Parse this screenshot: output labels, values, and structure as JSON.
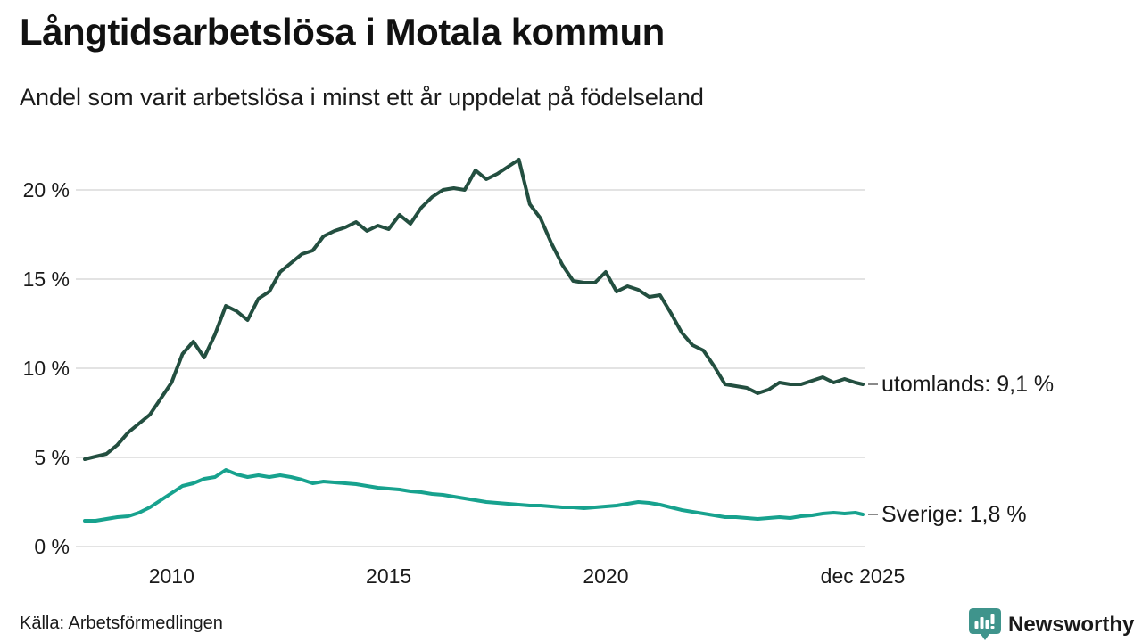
{
  "header": {
    "title": "Långtidsarbetslösa i Motala kommun",
    "subtitle": "Andel som varit arbetslösa i minst ett år uppdelat på födelseland"
  },
  "footer": {
    "source": "Källa: Arbetsförmedlingen",
    "brand": "Newsworthy"
  },
  "colors": {
    "grid": "#e3e3e3",
    "text": "#1a1a1a",
    "brand": "#3f948c",
    "leader_dash": "#8a8a8a"
  },
  "chart_data": {
    "type": "line",
    "title": "Långtidsarbetslösa i Motala kommun",
    "subtitle": "Andel som varit arbetslösa i minst ett år uppdelat på födelseland",
    "xlabel": "",
    "ylabel": "",
    "grid": true,
    "legend_position": "right-end-labels",
    "x_unit": "year (monthly series, jan 2008 – dec 2025)",
    "x_range": [
      2008,
      2025.92
    ],
    "ylim": [
      0,
      22.5
    ],
    "y_ticks": [
      {
        "value": 0,
        "label": "0 %"
      },
      {
        "value": 5,
        "label": "5 %"
      },
      {
        "value": 10,
        "label": "10 %"
      },
      {
        "value": 15,
        "label": "15 %"
      },
      {
        "value": 20,
        "label": "20 %"
      }
    ],
    "x_ticks": [
      {
        "value": 2010,
        "label": "2010"
      },
      {
        "value": 2015,
        "label": "2015"
      },
      {
        "value": 2020,
        "label": "2020"
      },
      {
        "value": 2025.92,
        "label": "dec 2025"
      }
    ],
    "x": [
      2008,
      2008.25,
      2008.5,
      2008.75,
      2009,
      2009.25,
      2009.5,
      2009.75,
      2010,
      2010.25,
      2010.5,
      2010.75,
      2011,
      2011.25,
      2011.5,
      2011.75,
      2012,
      2012.25,
      2012.5,
      2012.75,
      2013,
      2013.25,
      2013.5,
      2013.75,
      2014,
      2014.25,
      2014.5,
      2014.75,
      2015,
      2015.25,
      2015.5,
      2015.75,
      2016,
      2016.25,
      2016.5,
      2016.75,
      2017,
      2017.25,
      2017.5,
      2017.75,
      2018,
      2018.25,
      2018.5,
      2018.75,
      2019,
      2019.25,
      2019.5,
      2019.75,
      2020,
      2020.25,
      2020.5,
      2020.75,
      2021,
      2021.25,
      2021.5,
      2021.75,
      2022,
      2022.25,
      2022.5,
      2022.75,
      2023,
      2023.25,
      2023.5,
      2023.75,
      2024,
      2024.25,
      2024.5,
      2024.75,
      2025,
      2025.25,
      2025.5,
      2025.75,
      2025.92
    ],
    "series": [
      {
        "name": "utomlands",
        "label": "utomlands: 9,1 %",
        "end_value_label": "9,1 %",
        "end_value": 9.1,
        "color": "#234f40",
        "values": [
          4.9,
          5.05,
          5.2,
          5.7,
          6.4,
          6.9,
          7.4,
          8.3,
          9.2,
          10.8,
          11.5,
          10.6,
          11.9,
          13.5,
          13.2,
          12.7,
          13.9,
          14.3,
          15.4,
          15.9,
          16.4,
          16.6,
          17.4,
          17.7,
          17.9,
          18.2,
          17.7,
          18.0,
          17.8,
          18.6,
          18.1,
          19.0,
          19.6,
          20.0,
          20.1,
          20.0,
          21.1,
          20.6,
          20.9,
          21.3,
          21.7,
          19.2,
          18.4,
          17.0,
          15.8,
          14.9,
          14.8,
          14.8,
          15.4,
          14.3,
          14.6,
          14.4,
          14.0,
          14.1,
          13.1,
          12.0,
          11.3,
          11.0,
          10.1,
          9.1,
          9.0,
          8.9,
          8.6,
          8.8,
          9.2,
          9.1,
          9.1,
          9.3,
          9.5,
          9.2,
          9.4,
          9.2,
          9.1
        ]
      },
      {
        "name": "sverige",
        "label": "Sverige: 1,8 %",
        "end_value_label": "1,8 %",
        "end_value": 1.8,
        "color": "#17a28e",
        "values": [
          1.45,
          1.45,
          1.55,
          1.65,
          1.7,
          1.9,
          2.2,
          2.6,
          3.0,
          3.4,
          3.55,
          3.8,
          3.9,
          4.3,
          4.05,
          3.9,
          4.0,
          3.9,
          4.0,
          3.9,
          3.75,
          3.55,
          3.65,
          3.6,
          3.55,
          3.5,
          3.4,
          3.3,
          3.25,
          3.2,
          3.1,
          3.05,
          2.95,
          2.9,
          2.8,
          2.7,
          2.6,
          2.5,
          2.45,
          2.4,
          2.35,
          2.3,
          2.3,
          2.25,
          2.2,
          2.2,
          2.15,
          2.2,
          2.25,
          2.3,
          2.4,
          2.5,
          2.45,
          2.35,
          2.2,
          2.05,
          1.95,
          1.85,
          1.75,
          1.65,
          1.65,
          1.6,
          1.55,
          1.6,
          1.65,
          1.6,
          1.7,
          1.75,
          1.85,
          1.9,
          1.85,
          1.9,
          1.8
        ]
      }
    ]
  }
}
